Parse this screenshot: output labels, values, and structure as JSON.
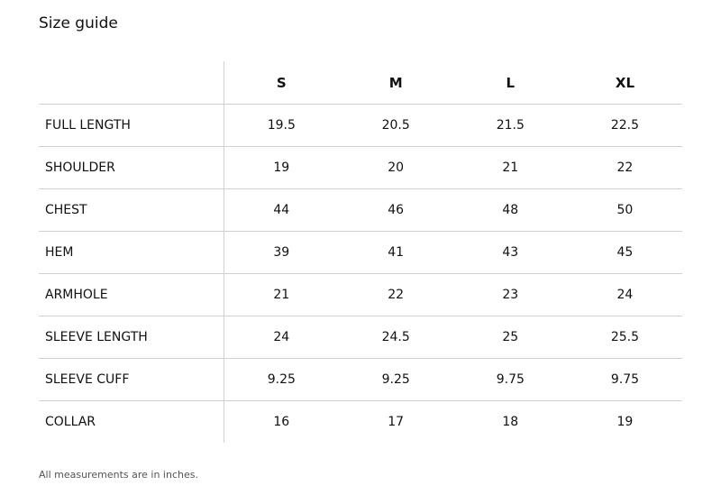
{
  "header": {
    "title": "Size guide"
  },
  "table": {
    "columns": [
      "S",
      "M",
      "L",
      "XL"
    ],
    "rows": [
      {
        "label": "FULL LENGTH",
        "values": [
          "19.5",
          "20.5",
          "21.5",
          "22.5"
        ]
      },
      {
        "label": "SHOULDER",
        "values": [
          "19",
          "20",
          "21",
          "22"
        ]
      },
      {
        "label": "CHEST",
        "values": [
          "44",
          "46",
          "48",
          "50"
        ]
      },
      {
        "label": "HEM",
        "values": [
          "39",
          "41",
          "43",
          "45"
        ]
      },
      {
        "label": "ARMHOLE",
        "values": [
          "21",
          "22",
          "23",
          "24"
        ]
      },
      {
        "label": "SLEEVE LENGTH",
        "values": [
          "24",
          "24.5",
          "25",
          "25.5"
        ]
      },
      {
        "label": "SLEEVE CUFF",
        "values": [
          "9.25",
          "9.25",
          "9.75",
          "9.75"
        ]
      },
      {
        "label": "COLLAR",
        "values": [
          "16",
          "17",
          "18",
          "19"
        ]
      }
    ]
  },
  "footnote": "All measurements are in inches."
}
